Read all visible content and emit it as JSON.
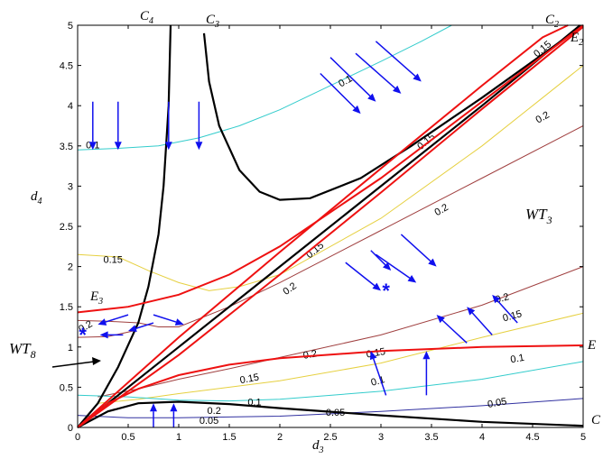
{
  "chart_data": {
    "type": "line",
    "xlabel": "d",
    "xlabel_sub": "3",
    "ylabel": "d",
    "ylabel_sub": "4",
    "xlim": [
      0,
      5
    ],
    "ylim": [
      0,
      5
    ],
    "xticks": [
      0,
      0.5,
      1,
      1.5,
      2,
      2.5,
      3,
      3.5,
      4,
      4.5,
      5
    ],
    "xtick_labels": [
      "0",
      "0.5",
      "1",
      "1.5",
      "2",
      "2.5",
      "3",
      "3.5",
      "4",
      "4.5",
      "5"
    ],
    "yticks": [
      0,
      0.5,
      1,
      1.5,
      2,
      2.5,
      3,
      3.5,
      4,
      4.5,
      5
    ],
    "ytick_labels": [
      "0",
      "0.5",
      "1",
      "1.5",
      "2",
      "2.5",
      "3",
      "3.5",
      "4",
      "4.5",
      "5"
    ],
    "grid": false,
    "colors": {
      "black": "#000000",
      "red": "#ee1111",
      "blue": "#1010ee",
      "c005": "#3030a0",
      "c010": "#33cccc",
      "c015": "#e6d040",
      "c020": "#a04040"
    },
    "black_curves": [
      {
        "name": "C4",
        "points": [
          [
            0,
            0
          ],
          [
            0.2,
            0.3
          ],
          [
            0.4,
            0.75
          ],
          [
            0.6,
            1.3
          ],
          [
            0.7,
            1.75
          ],
          [
            0.8,
            2.4
          ],
          [
            0.85,
            3.0
          ],
          [
            0.9,
            4.0
          ],
          [
            0.92,
            5.0
          ]
        ]
      },
      {
        "name": "C3",
        "points": [
          [
            1.25,
            4.9
          ],
          [
            1.3,
            4.3
          ],
          [
            1.4,
            3.75
          ],
          [
            1.6,
            3.2
          ],
          [
            1.8,
            2.93
          ],
          [
            2.0,
            2.83
          ],
          [
            2.3,
            2.85
          ],
          [
            2.8,
            3.1
          ],
          [
            3.3,
            3.5
          ],
          [
            4.0,
            4.1
          ],
          [
            5.0,
            5.0
          ]
        ]
      },
      {
        "name": "C2",
        "points": [
          [
            0,
            0
          ],
          [
            1,
            1.0
          ],
          [
            2,
            2.0
          ],
          [
            3,
            3.0
          ],
          [
            4,
            4.0
          ],
          [
            4.97,
            5.0
          ]
        ]
      },
      {
        "name": "C1",
        "points": [
          [
            0,
            0
          ],
          [
            0.3,
            0.2
          ],
          [
            0.6,
            0.3
          ],
          [
            1.0,
            0.32
          ],
          [
            1.5,
            0.29
          ],
          [
            2.0,
            0.24
          ],
          [
            3.0,
            0.15
          ],
          [
            4.0,
            0.07
          ],
          [
            5.0,
            0.02
          ]
        ]
      }
    ],
    "red_curves": [
      {
        "name": "E3",
        "points": [
          [
            0,
            1.43
          ],
          [
            0.5,
            1.5
          ],
          [
            1.0,
            1.65
          ],
          [
            1.5,
            1.9
          ],
          [
            2.0,
            2.25
          ],
          [
            3.0,
            3.1
          ],
          [
            4.0,
            4.05
          ],
          [
            5.0,
            5.0
          ]
        ]
      },
      {
        "name": "E2",
        "points": [
          [
            0,
            0
          ],
          [
            1,
            1.12
          ],
          [
            2,
            2.18
          ],
          [
            3,
            3.22
          ],
          [
            4,
            4.25
          ],
          [
            4.6,
            4.85
          ],
          [
            4.85,
            5.0
          ]
        ]
      },
      {
        "name": "E2b",
        "points": [
          [
            0,
            0
          ],
          [
            1,
            0.9
          ],
          [
            2,
            1.9
          ],
          [
            3,
            2.92
          ],
          [
            4,
            3.96
          ],
          [
            5,
            4.98
          ]
        ]
      },
      {
        "name": "E1",
        "points": [
          [
            0,
            0
          ],
          [
            0.3,
            0.3
          ],
          [
            0.6,
            0.48
          ],
          [
            1.0,
            0.65
          ],
          [
            1.5,
            0.78
          ],
          [
            2.0,
            0.86
          ],
          [
            3.0,
            0.95
          ],
          [
            4.0,
            1.0
          ],
          [
            5.0,
            1.02
          ]
        ]
      }
    ],
    "contours": [
      {
        "level": "0.1",
        "color": "c010",
        "points": [
          [
            0,
            3.45
          ],
          [
            0.4,
            3.47
          ],
          [
            0.8,
            3.5
          ],
          [
            1.2,
            3.6
          ],
          [
            1.6,
            3.75
          ],
          [
            2.0,
            3.95
          ],
          [
            2.5,
            4.25
          ],
          [
            3.0,
            4.55
          ],
          [
            3.4,
            4.8
          ],
          [
            3.7,
            5.0
          ]
        ]
      },
      {
        "level": "0.15",
        "color": "c015",
        "points": [
          [
            0,
            2.15
          ],
          [
            0.4,
            2.12
          ],
          [
            0.7,
            1.95
          ],
          [
            1.0,
            1.8
          ],
          [
            1.3,
            1.7
          ],
          [
            1.6,
            1.75
          ],
          [
            2.0,
            1.9
          ],
          [
            3.0,
            2.6
          ],
          [
            4.0,
            3.5
          ],
          [
            4.6,
            4.1
          ],
          [
            5.0,
            4.5
          ]
        ]
      },
      {
        "level": "0.2",
        "color": "c020",
        "points": [
          [
            0,
            1.33
          ],
          [
            0.3,
            1.32
          ],
          [
            0.6,
            1.3
          ],
          [
            0.8,
            1.25
          ],
          [
            1.0,
            1.25
          ],
          [
            1.5,
            1.5
          ],
          [
            2.0,
            1.8
          ],
          [
            3.0,
            2.45
          ],
          [
            4.0,
            3.1
          ],
          [
            5.0,
            3.75
          ]
        ]
      },
      {
        "level": "0.2",
        "color": "c020",
        "points": [
          [
            0,
            1.12
          ],
          [
            0.3,
            1.13
          ],
          [
            0.55,
            1.2
          ]
        ]
      },
      {
        "level": "0.2",
        "color": "c020",
        "points": [
          [
            0.2,
            0.38
          ],
          [
            0.6,
            0.48
          ],
          [
            1.0,
            0.6
          ],
          [
            1.5,
            0.73
          ],
          [
            2.0,
            0.87
          ],
          [
            3.0,
            1.15
          ],
          [
            4.0,
            1.52
          ],
          [
            5.0,
            2.0
          ]
        ]
      },
      {
        "level": "0.15",
        "color": "c015",
        "points": [
          [
            0.2,
            0.3
          ],
          [
            0.6,
            0.35
          ],
          [
            1.0,
            0.42
          ],
          [
            1.5,
            0.5
          ],
          [
            2.0,
            0.58
          ],
          [
            3.0,
            0.8
          ],
          [
            4.0,
            1.12
          ],
          [
            5.0,
            1.42
          ]
        ]
      },
      {
        "level": "0.1",
        "color": "c010",
        "points": [
          [
            0,
            0.4
          ],
          [
            0.5,
            0.38
          ],
          [
            1.0,
            0.34
          ],
          [
            1.5,
            0.33
          ],
          [
            2.0,
            0.35
          ],
          [
            3.0,
            0.45
          ],
          [
            4.0,
            0.6
          ],
          [
            5.0,
            0.82
          ]
        ]
      },
      {
        "level": "0.05",
        "color": "c005",
        "points": [
          [
            0,
            0.15
          ],
          [
            0.5,
            0.12
          ],
          [
            1.0,
            0.12
          ],
          [
            2.0,
            0.14
          ],
          [
            3.0,
            0.2
          ],
          [
            4.0,
            0.27
          ],
          [
            5.0,
            0.36
          ]
        ]
      }
    ],
    "contour_labels": [
      {
        "text": "0.1",
        "x": 0.15,
        "y": 3.5,
        "color": "c010",
        "rotate": 0
      },
      {
        "text": "0.1",
        "x": 2.65,
        "y": 4.3,
        "color": "c010",
        "rotate": -30
      },
      {
        "text": "0.15",
        "x": 0.35,
        "y": 2.08,
        "color": "c015",
        "rotate": 0
      },
      {
        "text": "0.15",
        "x": 1.7,
        "y": 0.6,
        "color": "c015",
        "rotate": -10
      },
      {
        "text": "0.15",
        "x": 4.3,
        "y": 1.38,
        "color": "c015",
        "rotate": -15
      },
      {
        "text": "0.15",
        "x": 2.95,
        "y": 0.92,
        "color": "c015",
        "rotate": -10
      },
      {
        "text": "0.15",
        "x": 3.45,
        "y": 3.55,
        "color": "c020",
        "rotate": -40
      },
      {
        "text": "0.15",
        "x": 4.6,
        "y": 4.7,
        "color": "c020",
        "rotate": -40
      },
      {
        "text": "0.15",
        "x": 2.35,
        "y": 2.2,
        "color": "c020",
        "rotate": -40
      },
      {
        "text": "0.2",
        "x": 4.6,
        "y": 3.85,
        "color": "c020",
        "rotate": -30
      },
      {
        "text": "0.2",
        "x": 3.6,
        "y": 2.7,
        "color": "c020",
        "rotate": -30
      },
      {
        "text": "0.2",
        "x": 2.1,
        "y": 1.72,
        "color": "c020",
        "rotate": -35
      },
      {
        "text": "0.2",
        "x": 0.08,
        "y": 1.25,
        "color": "c020",
        "rotate": -30
      },
      {
        "text": "0.2",
        "x": 4.2,
        "y": 1.6,
        "color": "c020",
        "rotate": -15
      },
      {
        "text": "0.2",
        "x": 2.3,
        "y": 0.9,
        "color": "c020",
        "rotate": -10
      },
      {
        "text": "0.2",
        "x": 1.35,
        "y": 0.2,
        "color": "c020",
        "rotate": 0
      },
      {
        "text": "0.1",
        "x": 1.75,
        "y": 0.31,
        "color": "c010",
        "rotate": 0
      },
      {
        "text": "0.1",
        "x": 2.97,
        "y": 0.57,
        "color": "c010",
        "rotate": -15
      },
      {
        "text": "0.1",
        "x": 4.35,
        "y": 0.85,
        "color": "c010",
        "rotate": -10
      },
      {
        "text": "0.05",
        "x": 1.3,
        "y": 0.08,
        "color": "c005",
        "rotate": 0
      },
      {
        "text": "0.05",
        "x": 2.55,
        "y": 0.18,
        "color": "c005",
        "rotate": 0
      },
      {
        "text": "0.05",
        "x": 4.15,
        "y": 0.3,
        "color": "c005",
        "rotate": -10
      }
    ],
    "arrows": [
      [
        0.15,
        4.05,
        0.15,
        3.45
      ],
      [
        0.4,
        4.05,
        0.4,
        3.45
      ],
      [
        0.9,
        4.05,
        0.9,
        3.45
      ],
      [
        1.2,
        4.05,
        1.2,
        3.45
      ],
      [
        2.5,
        4.6,
        2.95,
        4.05
      ],
      [
        2.75,
        4.65,
        3.2,
        4.15
      ],
      [
        2.95,
        4.8,
        3.4,
        4.3
      ],
      [
        2.4,
        4.4,
        2.8,
        3.9
      ],
      [
        2.65,
        2.05,
        3.0,
        1.7
      ],
      [
        2.95,
        2.15,
        3.35,
        1.8
      ],
      [
        3.2,
        2.4,
        3.55,
        2.0
      ],
      [
        2.9,
        2.2,
        3.1,
        1.95
      ],
      [
        3.85,
        1.05,
        3.55,
        1.4
      ],
      [
        4.1,
        1.15,
        3.85,
        1.5
      ],
      [
        4.35,
        1.3,
        4.1,
        1.65
      ],
      [
        0.5,
        1.4,
        0.2,
        1.28
      ],
      [
        0.45,
        1.15,
        0.22,
        1.15
      ],
      [
        0.75,
        1.3,
        0.5,
        1.2
      ],
      [
        0.75,
        1.4,
        1.05,
        1.28
      ],
      [
        3.45,
        0.4,
        3.45,
        0.95
      ],
      [
        3.05,
        0.4,
        2.9,
        0.95
      ],
      [
        0.75,
        0.0,
        0.75,
        0.3
      ],
      [
        0.95,
        0.0,
        0.95,
        0.3
      ]
    ],
    "stars": [
      [
        0.05,
        1.13
      ],
      [
        3.05,
        1.68
      ]
    ],
    "annotations": {
      "C4": "C",
      "C4_sub": "4",
      "C3": "C",
      "C3_sub": "3",
      "C2": "C",
      "C2_sub": "2",
      "E2": "E",
      "E2_sub": "2",
      "E3": "E",
      "E3_sub": "3",
      "E1": "E",
      "C1": "C",
      "WT3": "WT",
      "WT3_sub": "3",
      "WT8": "WT",
      "WT8_sub": "8"
    }
  }
}
